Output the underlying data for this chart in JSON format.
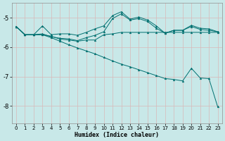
{
  "xlabel": "Humidex (Indice chaleur)",
  "bg_color": "#c8e8e8",
  "line_color": "#007070",
  "grid_color": "#b0d0d0",
  "xlim": [
    -0.5,
    23.5
  ],
  "ylim": [
    -8.6,
    -4.5
  ],
  "yticks": [
    -8,
    -7,
    -6,
    -5
  ],
  "xticks": [
    0,
    1,
    2,
    3,
    4,
    5,
    6,
    7,
    8,
    9,
    10,
    11,
    12,
    13,
    14,
    15,
    16,
    17,
    18,
    19,
    20,
    21,
    22,
    23
  ],
  "s1_y": [
    -5.3,
    -5.58,
    -5.58,
    -5.28,
    -5.58,
    -5.55,
    -5.55,
    -5.6,
    -5.5,
    -5.38,
    -5.28,
    -4.93,
    -4.8,
    -5.05,
    -4.98,
    -5.08,
    -5.28,
    -5.53,
    -5.43,
    -5.43,
    -5.26,
    -5.36,
    -5.38,
    -5.48
  ],
  "s2_y": [
    -5.3,
    -5.58,
    -5.58,
    -5.55,
    -5.65,
    -5.7,
    -5.72,
    -5.78,
    -5.68,
    -5.6,
    -5.48,
    -5.03,
    -4.87,
    -5.08,
    -5.03,
    -5.13,
    -5.36,
    -5.53,
    -5.43,
    -5.43,
    -5.3,
    -5.4,
    -5.43,
    -5.48
  ],
  "s3_y": [
    -5.3,
    -5.58,
    -5.58,
    -5.58,
    -5.63,
    -5.73,
    -5.76,
    -5.8,
    -5.76,
    -5.76,
    -5.58,
    -5.55,
    -5.5,
    -5.5,
    -5.5,
    -5.5,
    -5.5,
    -5.5,
    -5.5,
    -5.5,
    -5.5,
    -5.5,
    -5.5,
    -5.5
  ],
  "s4_y": [
    -5.3,
    -5.58,
    -5.58,
    -5.58,
    -5.68,
    -5.8,
    -5.92,
    -6.03,
    -6.13,
    -6.23,
    -6.35,
    -6.47,
    -6.58,
    -6.67,
    -6.77,
    -6.87,
    -6.97,
    -7.07,
    -7.1,
    -7.15,
    -6.72,
    -7.05,
    -7.07,
    -8.03
  ]
}
